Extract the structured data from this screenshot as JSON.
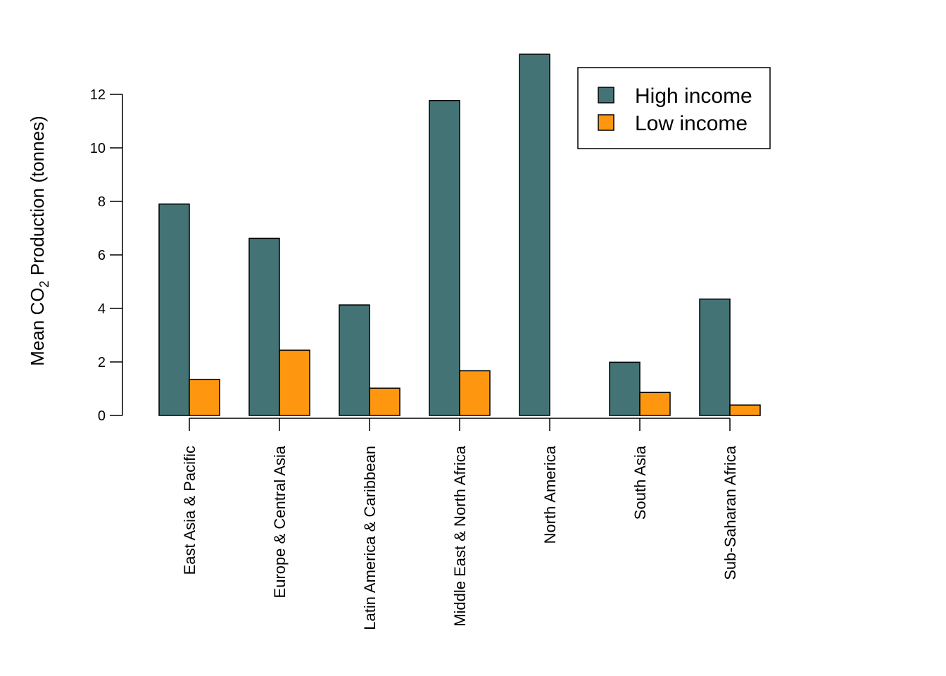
{
  "chart_data": {
    "type": "bar",
    "ylabel": {
      "prefix": "Mean CO",
      "subscript": "2",
      "suffix": " Production (tonnes)"
    },
    "xlabel": "",
    "ylim": [
      0,
      13.5
    ],
    "yticks": [
      0,
      2,
      4,
      6,
      8,
      10,
      12
    ],
    "grid": false,
    "legend_position": "top-right",
    "categories": [
      "East Asia & Pacific",
      "Europe & Central Asia",
      "Latin America & Caribbean",
      "Middle East & North Africa",
      "North America",
      "South Asia",
      "Sub-Saharan Africa"
    ],
    "series": [
      {
        "name": "High income",
        "color": "#437375",
        "values": [
          7.9,
          6.62,
          4.13,
          11.77,
          13.5,
          1.99,
          4.35
        ]
      },
      {
        "name": "Low income",
        "color": "#ff960f",
        "values": [
          1.35,
          2.44,
          1.02,
          1.67,
          null,
          0.86,
          0.39
        ]
      }
    ]
  }
}
